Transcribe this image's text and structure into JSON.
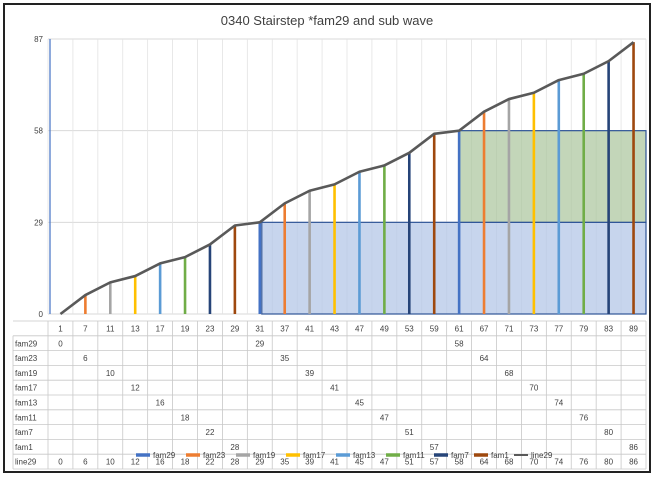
{
  "chart_data": {
    "type": "line",
    "title": "0340 Stairstep *fam29 and sub wave",
    "categories": [
      "1",
      "7",
      "11",
      "13",
      "17",
      "19",
      "23",
      "29",
      "31",
      "37",
      "41",
      "43",
      "47",
      "49",
      "53",
      "59",
      "61",
      "67",
      "71",
      "73",
      "77",
      "79",
      "83",
      "89"
    ],
    "y_ticks": [
      "0",
      "29",
      "58",
      "87"
    ],
    "ylim": [
      0,
      87
    ],
    "grid": true,
    "legend_position": "bottom",
    "colors": {
      "fam29": "#4472C4",
      "fam23": "#ED7D31",
      "fam19": "#A5A5A5",
      "fam17": "#FFC000",
      "fam13": "#5B9BD5",
      "fam11": "#70AD47",
      "fam7": "#264478",
      "fam1": "#9E480E",
      "line29": "#595959"
    },
    "series": [
      {
        "name": "fam29",
        "values": [
          0,
          null,
          null,
          null,
          null,
          null,
          null,
          null,
          29,
          null,
          null,
          null,
          null,
          null,
          null,
          null,
          58,
          null,
          null,
          null,
          null,
          null,
          null,
          null
        ]
      },
      {
        "name": "fam23",
        "values": [
          null,
          6,
          null,
          null,
          null,
          null,
          null,
          null,
          null,
          35,
          null,
          null,
          null,
          null,
          null,
          null,
          null,
          64,
          null,
          null,
          null,
          null,
          null,
          null
        ]
      },
      {
        "name": "fam19",
        "values": [
          null,
          null,
          10,
          null,
          null,
          null,
          null,
          null,
          null,
          null,
          39,
          null,
          null,
          null,
          null,
          null,
          null,
          null,
          68,
          null,
          null,
          null,
          null,
          null
        ]
      },
      {
        "name": "fam17",
        "values": [
          null,
          null,
          null,
          12,
          null,
          null,
          null,
          null,
          null,
          null,
          null,
          41,
          null,
          null,
          null,
          null,
          null,
          null,
          null,
          70,
          null,
          null,
          null,
          null
        ]
      },
      {
        "name": "fam13",
        "values": [
          null,
          null,
          null,
          null,
          16,
          null,
          null,
          null,
          null,
          null,
          null,
          null,
          45,
          null,
          null,
          null,
          null,
          null,
          null,
          null,
          74,
          null,
          null,
          null
        ]
      },
      {
        "name": "fam11",
        "values": [
          null,
          null,
          null,
          null,
          null,
          18,
          null,
          null,
          null,
          null,
          null,
          null,
          null,
          47,
          null,
          null,
          null,
          null,
          null,
          null,
          null,
          76,
          null,
          null
        ]
      },
      {
        "name": "fam7",
        "values": [
          null,
          null,
          null,
          null,
          null,
          null,
          22,
          null,
          null,
          null,
          null,
          null,
          null,
          null,
          51,
          null,
          null,
          null,
          null,
          null,
          null,
          null,
          80,
          null
        ]
      },
      {
        "name": "fam1",
        "values": [
          null,
          null,
          null,
          null,
          null,
          null,
          null,
          28,
          null,
          null,
          null,
          null,
          null,
          null,
          null,
          57,
          null,
          null,
          null,
          null,
          null,
          null,
          null,
          86
        ]
      },
      {
        "name": "line29",
        "values": [
          0,
          6,
          10,
          12,
          16,
          18,
          22,
          28,
          29,
          35,
          39,
          41,
          45,
          47,
          51,
          57,
          58,
          64,
          68,
          70,
          74,
          76,
          80,
          86
        ]
      }
    ]
  }
}
